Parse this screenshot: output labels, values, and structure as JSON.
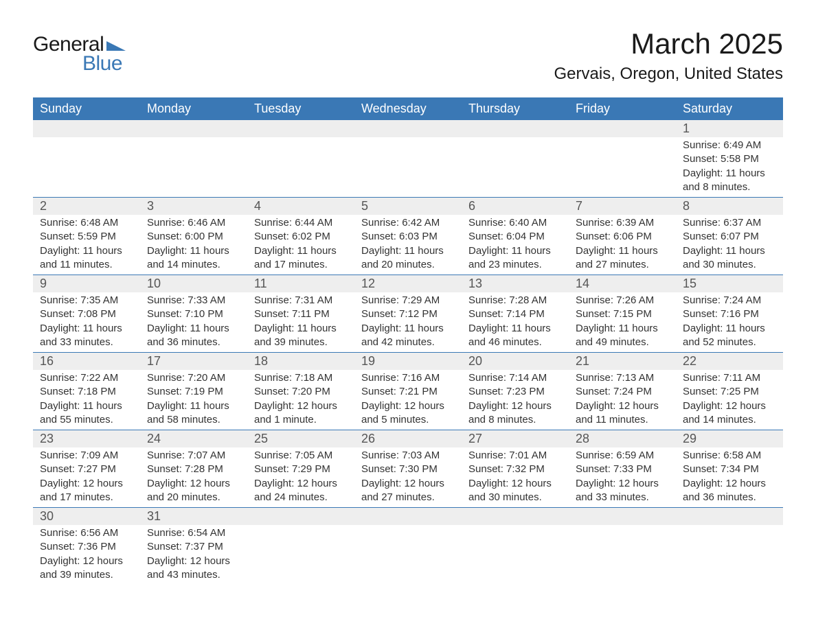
{
  "logo": {
    "text_general": "General",
    "text_blue": "Blue",
    "shape_color": "#3a78b5",
    "text_color_general": "#1a1a1a",
    "text_color_blue": "#3a78b5"
  },
  "title": {
    "month": "March 2025",
    "location": "Gervais, Oregon, United States",
    "month_fontsize": 42,
    "location_fontsize": 24,
    "text_color": "#1a1a1a"
  },
  "calendar": {
    "type": "table",
    "header_bg": "#3a78b5",
    "header_text_color": "#ffffff",
    "header_fontsize": 18,
    "daynum_bg": "#eeeeee",
    "daynum_color": "#555555",
    "daynum_fontsize": 18,
    "cell_border_color": "#3a78b5",
    "cell_fontsize": 15,
    "cell_text_color": "#333333",
    "background_color": "#ffffff",
    "columns": [
      "Sunday",
      "Monday",
      "Tuesday",
      "Wednesday",
      "Thursday",
      "Friday",
      "Saturday"
    ],
    "weeks": [
      [
        null,
        null,
        null,
        null,
        null,
        null,
        {
          "day": "1",
          "sunrise": "Sunrise: 6:49 AM",
          "sunset": "Sunset: 5:58 PM",
          "daylight1": "Daylight: 11 hours",
          "daylight2": "and 8 minutes."
        }
      ],
      [
        {
          "day": "2",
          "sunrise": "Sunrise: 6:48 AM",
          "sunset": "Sunset: 5:59 PM",
          "daylight1": "Daylight: 11 hours",
          "daylight2": "and 11 minutes."
        },
        {
          "day": "3",
          "sunrise": "Sunrise: 6:46 AM",
          "sunset": "Sunset: 6:00 PM",
          "daylight1": "Daylight: 11 hours",
          "daylight2": "and 14 minutes."
        },
        {
          "day": "4",
          "sunrise": "Sunrise: 6:44 AM",
          "sunset": "Sunset: 6:02 PM",
          "daylight1": "Daylight: 11 hours",
          "daylight2": "and 17 minutes."
        },
        {
          "day": "5",
          "sunrise": "Sunrise: 6:42 AM",
          "sunset": "Sunset: 6:03 PM",
          "daylight1": "Daylight: 11 hours",
          "daylight2": "and 20 minutes."
        },
        {
          "day": "6",
          "sunrise": "Sunrise: 6:40 AM",
          "sunset": "Sunset: 6:04 PM",
          "daylight1": "Daylight: 11 hours",
          "daylight2": "and 23 minutes."
        },
        {
          "day": "7",
          "sunrise": "Sunrise: 6:39 AM",
          "sunset": "Sunset: 6:06 PM",
          "daylight1": "Daylight: 11 hours",
          "daylight2": "and 27 minutes."
        },
        {
          "day": "8",
          "sunrise": "Sunrise: 6:37 AM",
          "sunset": "Sunset: 6:07 PM",
          "daylight1": "Daylight: 11 hours",
          "daylight2": "and 30 minutes."
        }
      ],
      [
        {
          "day": "9",
          "sunrise": "Sunrise: 7:35 AM",
          "sunset": "Sunset: 7:08 PM",
          "daylight1": "Daylight: 11 hours",
          "daylight2": "and 33 minutes."
        },
        {
          "day": "10",
          "sunrise": "Sunrise: 7:33 AM",
          "sunset": "Sunset: 7:10 PM",
          "daylight1": "Daylight: 11 hours",
          "daylight2": "and 36 minutes."
        },
        {
          "day": "11",
          "sunrise": "Sunrise: 7:31 AM",
          "sunset": "Sunset: 7:11 PM",
          "daylight1": "Daylight: 11 hours",
          "daylight2": "and 39 minutes."
        },
        {
          "day": "12",
          "sunrise": "Sunrise: 7:29 AM",
          "sunset": "Sunset: 7:12 PM",
          "daylight1": "Daylight: 11 hours",
          "daylight2": "and 42 minutes."
        },
        {
          "day": "13",
          "sunrise": "Sunrise: 7:28 AM",
          "sunset": "Sunset: 7:14 PM",
          "daylight1": "Daylight: 11 hours",
          "daylight2": "and 46 minutes."
        },
        {
          "day": "14",
          "sunrise": "Sunrise: 7:26 AM",
          "sunset": "Sunset: 7:15 PM",
          "daylight1": "Daylight: 11 hours",
          "daylight2": "and 49 minutes."
        },
        {
          "day": "15",
          "sunrise": "Sunrise: 7:24 AM",
          "sunset": "Sunset: 7:16 PM",
          "daylight1": "Daylight: 11 hours",
          "daylight2": "and 52 minutes."
        }
      ],
      [
        {
          "day": "16",
          "sunrise": "Sunrise: 7:22 AM",
          "sunset": "Sunset: 7:18 PM",
          "daylight1": "Daylight: 11 hours",
          "daylight2": "and 55 minutes."
        },
        {
          "day": "17",
          "sunrise": "Sunrise: 7:20 AM",
          "sunset": "Sunset: 7:19 PM",
          "daylight1": "Daylight: 11 hours",
          "daylight2": "and 58 minutes."
        },
        {
          "day": "18",
          "sunrise": "Sunrise: 7:18 AM",
          "sunset": "Sunset: 7:20 PM",
          "daylight1": "Daylight: 12 hours",
          "daylight2": "and 1 minute."
        },
        {
          "day": "19",
          "sunrise": "Sunrise: 7:16 AM",
          "sunset": "Sunset: 7:21 PM",
          "daylight1": "Daylight: 12 hours",
          "daylight2": "and 5 minutes."
        },
        {
          "day": "20",
          "sunrise": "Sunrise: 7:14 AM",
          "sunset": "Sunset: 7:23 PM",
          "daylight1": "Daylight: 12 hours",
          "daylight2": "and 8 minutes."
        },
        {
          "day": "21",
          "sunrise": "Sunrise: 7:13 AM",
          "sunset": "Sunset: 7:24 PM",
          "daylight1": "Daylight: 12 hours",
          "daylight2": "and 11 minutes."
        },
        {
          "day": "22",
          "sunrise": "Sunrise: 7:11 AM",
          "sunset": "Sunset: 7:25 PM",
          "daylight1": "Daylight: 12 hours",
          "daylight2": "and 14 minutes."
        }
      ],
      [
        {
          "day": "23",
          "sunrise": "Sunrise: 7:09 AM",
          "sunset": "Sunset: 7:27 PM",
          "daylight1": "Daylight: 12 hours",
          "daylight2": "and 17 minutes."
        },
        {
          "day": "24",
          "sunrise": "Sunrise: 7:07 AM",
          "sunset": "Sunset: 7:28 PM",
          "daylight1": "Daylight: 12 hours",
          "daylight2": "and 20 minutes."
        },
        {
          "day": "25",
          "sunrise": "Sunrise: 7:05 AM",
          "sunset": "Sunset: 7:29 PM",
          "daylight1": "Daylight: 12 hours",
          "daylight2": "and 24 minutes."
        },
        {
          "day": "26",
          "sunrise": "Sunrise: 7:03 AM",
          "sunset": "Sunset: 7:30 PM",
          "daylight1": "Daylight: 12 hours",
          "daylight2": "and 27 minutes."
        },
        {
          "day": "27",
          "sunrise": "Sunrise: 7:01 AM",
          "sunset": "Sunset: 7:32 PM",
          "daylight1": "Daylight: 12 hours",
          "daylight2": "and 30 minutes."
        },
        {
          "day": "28",
          "sunrise": "Sunrise: 6:59 AM",
          "sunset": "Sunset: 7:33 PM",
          "daylight1": "Daylight: 12 hours",
          "daylight2": "and 33 minutes."
        },
        {
          "day": "29",
          "sunrise": "Sunrise: 6:58 AM",
          "sunset": "Sunset: 7:34 PM",
          "daylight1": "Daylight: 12 hours",
          "daylight2": "and 36 minutes."
        }
      ],
      [
        {
          "day": "30",
          "sunrise": "Sunrise: 6:56 AM",
          "sunset": "Sunset: 7:36 PM",
          "daylight1": "Daylight: 12 hours",
          "daylight2": "and 39 minutes."
        },
        {
          "day": "31",
          "sunrise": "Sunrise: 6:54 AM",
          "sunset": "Sunset: 7:37 PM",
          "daylight1": "Daylight: 12 hours",
          "daylight2": "and 43 minutes."
        },
        null,
        null,
        null,
        null,
        null
      ]
    ]
  }
}
